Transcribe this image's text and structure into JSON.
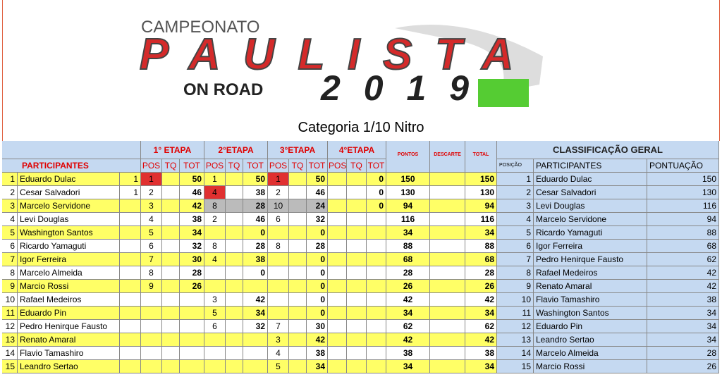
{
  "logo": {
    "top": "CAMPEONATO",
    "main": "PAULISTA",
    "sub": "ON ROAD",
    "year": "2019"
  },
  "category": "Categoria 1/10 Nitro",
  "table": {
    "stages": [
      "1° ETAPA",
      "2°ETAPA",
      "3°ETAPA",
      "4°ETAPA"
    ],
    "stage_columns": [
      "POS",
      "TQ",
      "TOT"
    ],
    "participants_label": "PARTICIPANTES",
    "points_label": "PONTOS",
    "discard_label": "DESCARTE",
    "total_label": "TOTAL",
    "rows": [
      [
        1,
        "Eduardo Dulac",
        1,
        1,
        null,
        50,
        1,
        null,
        50,
        1,
        null,
        50,
        null,
        null,
        0,
        150,
        null,
        150
      ],
      [
        2,
        "Cesar Salvadori",
        1,
        2,
        null,
        46,
        4,
        null,
        38,
        2,
        null,
        46,
        null,
        null,
        0,
        130,
        null,
        130
      ],
      [
        3,
        "Marcelo Servidone",
        null,
        3,
        null,
        42,
        8,
        null,
        28,
        10,
        null,
        24,
        null,
        null,
        0,
        94,
        null,
        94
      ],
      [
        4,
        "Levi Douglas",
        null,
        4,
        null,
        38,
        2,
        null,
        46,
        6,
        null,
        32,
        null,
        null,
        null,
        116,
        null,
        116
      ],
      [
        5,
        "Washington Santos",
        null,
        5,
        null,
        34,
        null,
        null,
        0,
        null,
        null,
        0,
        null,
        null,
        null,
        34,
        null,
        34
      ],
      [
        6,
        "Ricardo Yamaguti",
        null,
        6,
        null,
        32,
        8,
        null,
        28,
        8,
        null,
        28,
        null,
        null,
        null,
        88,
        null,
        88
      ],
      [
        7,
        "Igor Ferreira",
        null,
        7,
        null,
        30,
        4,
        null,
        38,
        null,
        null,
        0,
        null,
        null,
        null,
        68,
        null,
        68
      ],
      [
        8,
        "Marcelo Almeida",
        null,
        8,
        null,
        28,
        null,
        null,
        0,
        null,
        null,
        0,
        null,
        null,
        null,
        28,
        null,
        28
      ],
      [
        9,
        "Marcio Rossi",
        null,
        9,
        null,
        26,
        null,
        null,
        null,
        null,
        null,
        0,
        null,
        null,
        null,
        26,
        null,
        26
      ],
      [
        10,
        "Rafael Medeiros",
        null,
        null,
        null,
        null,
        3,
        null,
        42,
        null,
        null,
        0,
        null,
        null,
        null,
        42,
        null,
        42
      ],
      [
        11,
        "Eduardo Pin",
        null,
        null,
        null,
        null,
        5,
        null,
        34,
        null,
        null,
        0,
        null,
        null,
        null,
        34,
        null,
        34
      ],
      [
        12,
        "Pedro Henirque Fausto",
        null,
        null,
        null,
        null,
        6,
        null,
        32,
        7,
        null,
        30,
        null,
        null,
        null,
        62,
        null,
        62
      ],
      [
        13,
        "Renato Amaral",
        null,
        null,
        null,
        null,
        null,
        null,
        null,
        3,
        null,
        42,
        null,
        null,
        null,
        42,
        null,
        42
      ],
      [
        14,
        "Flavio Tamashiro",
        null,
        null,
        null,
        null,
        null,
        null,
        null,
        4,
        null,
        38,
        null,
        null,
        null,
        38,
        null,
        38
      ],
      [
        15,
        "Leandro Sertao",
        null,
        null,
        null,
        null,
        null,
        null,
        null,
        5,
        null,
        34,
        null,
        null,
        null,
        34,
        null,
        34
      ]
    ]
  },
  "standings": {
    "title": "CLASSIFICAÇÃO GERAL",
    "columns": [
      "POSIÇÃO",
      "PARTICIPANTES",
      "PONTUAÇÃO"
    ],
    "rows": [
      [
        1,
        "Eduardo Dulac",
        150
      ],
      [
        2,
        "Cesar Salvadori",
        130
      ],
      [
        3,
        "Levi Douglas",
        116
      ],
      [
        4,
        "Marcelo Servidone",
        94
      ],
      [
        5,
        "Ricardo Yamaguti",
        88
      ],
      [
        6,
        "Igor Ferreira",
        68
      ],
      [
        7,
        "Pedro Henirque Fausto",
        62
      ],
      [
        8,
        "Rafael Medeiros",
        42
      ],
      [
        9,
        "Renato Amaral",
        42
      ],
      [
        10,
        "Flavio Tamashiro",
        38
      ],
      [
        11,
        "Washington Santos",
        34
      ],
      [
        12,
        "Eduardo Pin",
        34
      ],
      [
        13,
        "Leandro Sertao",
        34
      ],
      [
        14,
        "Marcelo Almeida",
        28
      ],
      [
        15,
        "Marcio Rossi",
        26
      ]
    ]
  }
}
